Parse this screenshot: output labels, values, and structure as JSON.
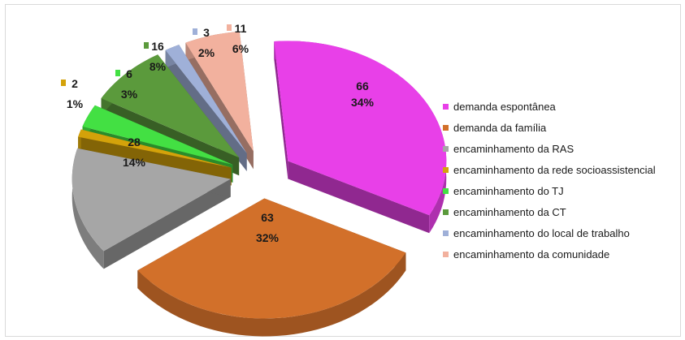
{
  "chart_data": {
    "type": "pie",
    "title": "",
    "exploded_3d": true,
    "legend_position": "right",
    "slices": [
      {
        "label": "demanda espontânea",
        "value": 66,
        "percent": "34%",
        "color": "#e840e8"
      },
      {
        "label": "demanda da família",
        "value": 63,
        "percent": "32%",
        "color": "#d2702a"
      },
      {
        "label": "encaminhamento da RAS",
        "value": 28,
        "percent": "14%",
        "color": "#a6a6a6"
      },
      {
        "label": "encaminhamento da rede socioassistencial",
        "value": 2,
        "percent": "1%",
        "color": "#d4a20a"
      },
      {
        "label": "encaminhamento do TJ",
        "value": 6,
        "percent": "3%",
        "color": "#43e043"
      },
      {
        "label": "encaminhamento da CT",
        "value": 16,
        "percent": "8%",
        "color": "#5b9a3c"
      },
      {
        "label": "encaminhamento do local de trabalho",
        "value": 3,
        "percent": "2%",
        "color": "#9fb0d8"
      },
      {
        "label": "encaminhamento da comunidade",
        "value": 11,
        "percent": "6%",
        "color": "#f2b19e"
      }
    ]
  }
}
